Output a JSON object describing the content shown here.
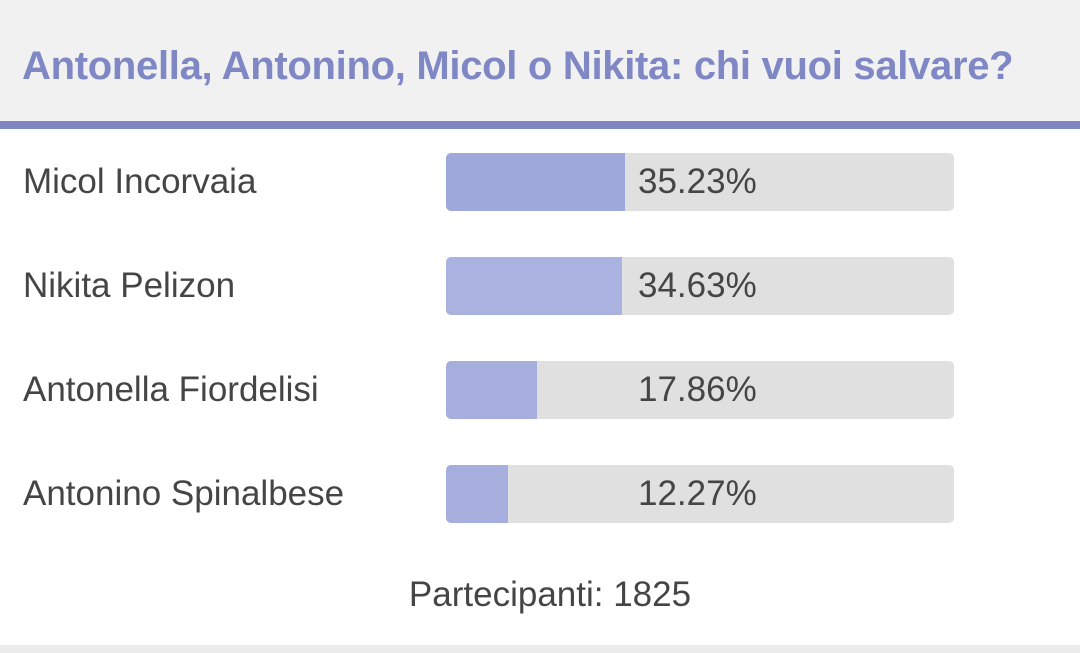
{
  "poll": {
    "title": "Antonella, Antonino, Micol o Nikita: chi vuoi salvare?",
    "options": [
      {
        "label": "Micol Incorvaia",
        "percent_text": "35.23%",
        "fill_fraction": 0.352,
        "fill_color": "#9fa8da"
      },
      {
        "label": "Nikita Pelizon",
        "percent_text": "34.63%",
        "fill_fraction": 0.346,
        "fill_color": "#aab3e0"
      },
      {
        "label": "Antonella Fiordelisi",
        "percent_text": "17.86%",
        "fill_fraction": 0.179,
        "fill_color": "#a6aede"
      },
      {
        "label": "Antonino Spinalbese",
        "percent_text": "12.27%",
        "fill_fraction": 0.123,
        "fill_color": "#a6aede"
      }
    ],
    "participants_text": "Partecipanti: 1825"
  },
  "colors": {
    "accent": "#7d86c2",
    "title": "#7f87c5",
    "track": "#e0e0e0",
    "text": "#454545"
  }
}
